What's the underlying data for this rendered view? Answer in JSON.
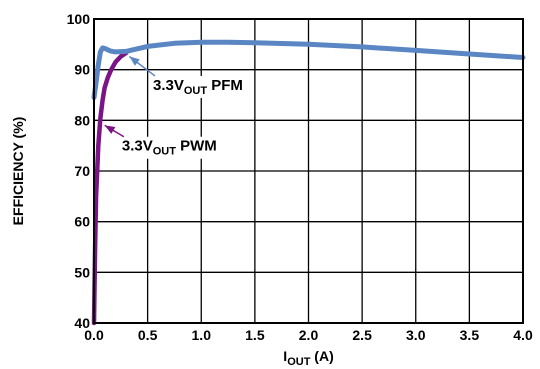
{
  "chart_data": {
    "type": "line",
    "xlabel": {
      "main": "I",
      "sub": "OUT",
      "rest": " (A)"
    },
    "ylabel": "EFFICIENCY (%)",
    "xlim": [
      0,
      4.0
    ],
    "ylim": [
      40,
      100
    ],
    "x_ticks": [
      "0.0",
      "0.5",
      "1.0",
      "1.5",
      "2.0",
      "2.5",
      "3.0",
      "3.5",
      "4.0"
    ],
    "y_ticks": [
      "40",
      "50",
      "60",
      "70",
      "80",
      "90",
      "100"
    ],
    "grid": true,
    "series": [
      {
        "label": {
          "pre": "3.3V",
          "sub": "OUT",
          "post": " PFM"
        },
        "color": "#5b86c4",
        "x": [
          0.0,
          0.02,
          0.04,
          0.06,
          0.08,
          0.1,
          0.15,
          0.2,
          0.3,
          0.5,
          0.75,
          1.0,
          1.25,
          1.5,
          2.0,
          2.5,
          3.0,
          3.5,
          4.0
        ],
        "y": [
          84.5,
          87.5,
          91.0,
          93.5,
          94.3,
          94.2,
          93.7,
          93.5,
          93.6,
          94.6,
          95.2,
          95.4,
          95.4,
          95.3,
          95.0,
          94.5,
          93.8,
          93.1,
          92.4
        ]
      },
      {
        "label": {
          "pre": "3.3V",
          "sub": "OUT",
          "post": " PWM"
        },
        "color": "#7b1585",
        "x": [
          0.0,
          0.01,
          0.02,
          0.04,
          0.06,
          0.08,
          0.1,
          0.13,
          0.16,
          0.2,
          0.25,
          0.3
        ],
        "y": [
          40.0,
          55.0,
          65.0,
          75.0,
          80.5,
          84.0,
          86.5,
          88.5,
          90.0,
          91.5,
          92.6,
          93.3
        ]
      }
    ],
    "annotations": [
      {
        "series": 0,
        "text_x": 0.55,
        "text_y": 86.0,
        "arrow_to": [
          0.33,
          92.6
        ]
      },
      {
        "series": 1,
        "text_x": 0.26,
        "text_y": 74.0,
        "arrow_to": [
          0.1,
          79.0
        ]
      }
    ]
  }
}
